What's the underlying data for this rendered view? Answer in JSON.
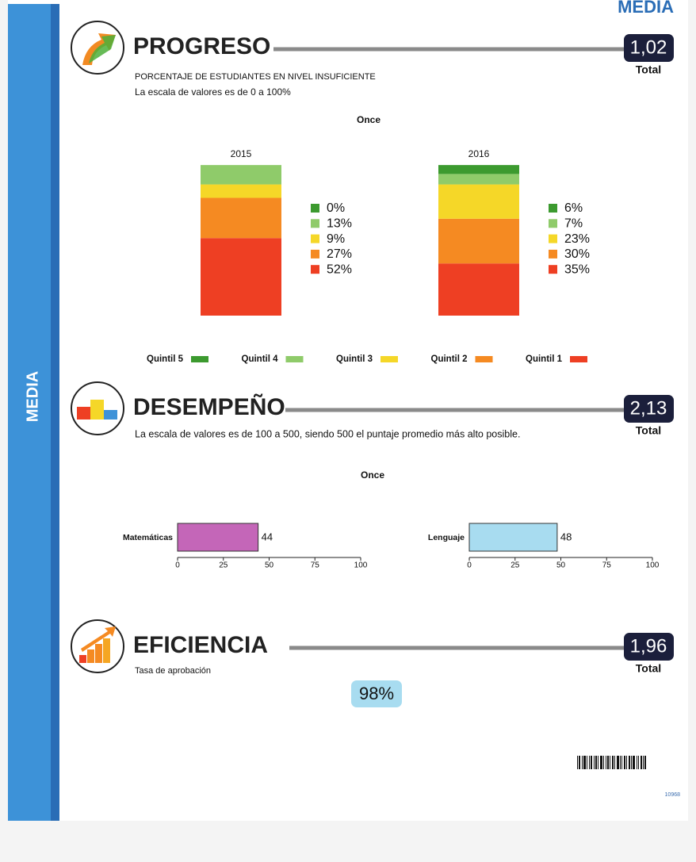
{
  "header": {
    "level": "MEDIA"
  },
  "sidebar": {
    "label": "MEDIA"
  },
  "progreso": {
    "title": "PROGRESO",
    "score": "1,02",
    "score_label": "Total",
    "subtitle": "PORCENTAJE DE ESTUDIANTES EN NIVEL INSUFICIENTE",
    "scale_note": "La escala de valores es de 0 a 100%",
    "chart_data": {
      "type": "stacked_bar",
      "title": "Once",
      "categories": [
        "2015",
        "2016"
      ],
      "ylim": [
        0,
        100
      ],
      "series": [
        {
          "name": "Quintil 5",
          "color": "#3c9a2f",
          "values": [
            0,
            6
          ],
          "value_labels": [
            "0%",
            "6%"
          ]
        },
        {
          "name": "Quintil 4",
          "color": "#8fcb6a",
          "values": [
            13,
            7
          ],
          "value_labels": [
            "13%",
            "7%"
          ]
        },
        {
          "name": "Quintil 3",
          "color": "#f5d728",
          "values": [
            9,
            23
          ],
          "value_labels": [
            "9%",
            "23%"
          ]
        },
        {
          "name": "Quintil 2",
          "color": "#f58a22",
          "values": [
            27,
            30
          ],
          "value_labels": [
            "27%",
            "30%"
          ]
        },
        {
          "name": "Quintil 1",
          "color": "#ee3f23",
          "values": [
            52,
            35
          ],
          "value_labels": [
            "52%",
            "35%"
          ]
        }
      ]
    }
  },
  "desempeno": {
    "title": "DESEMPEÑO",
    "score": "2,13",
    "score_label": "Total",
    "scale_note": "La escala de valores es de 100 a 500, siendo 500 el puntaje promedio más alto posible.",
    "chart_data": {
      "type": "hbar",
      "title": "Once",
      "panels": [
        {
          "category": "Matemáticas",
          "value": 44,
          "color": "#c466b8",
          "xlim": [
            0,
            100
          ],
          "xticks": [
            0,
            25,
            50,
            75,
            100
          ]
        },
        {
          "category": "Lenguaje",
          "value": 48,
          "color": "#a8dcf0",
          "xlim": [
            0,
            100
          ],
          "xticks": [
            0,
            25,
            50,
            75,
            100
          ]
        }
      ]
    }
  },
  "eficiencia": {
    "title": "EFICIENCIA",
    "score": "1,96",
    "score_label": "Total",
    "subtitle": "Tasa de aprobación",
    "rate": "98%"
  },
  "footer": {
    "code": "10968"
  }
}
